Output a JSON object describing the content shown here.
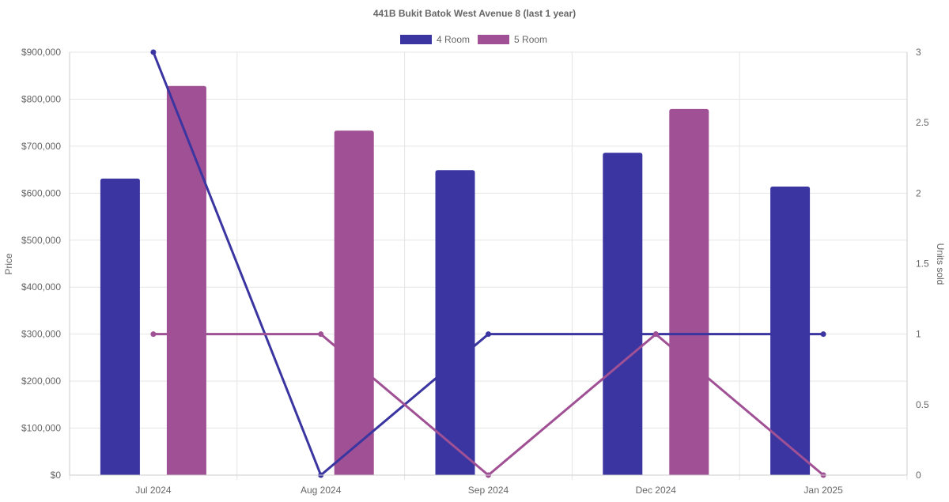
{
  "chart_data": {
    "type": "bar",
    "title": "441B Bukit Batok West Avenue 8 (last 1 year)",
    "categories": [
      "Jul 2024",
      "Aug 2024",
      "Sep 2024",
      "Dec 2024",
      "Jan 2025"
    ],
    "ylabel": "Price",
    "y2label": "Units sold",
    "ylim": [
      0,
      900000
    ],
    "y2lim": [
      0,
      3
    ],
    "yticks": [
      "$0",
      "$100,000",
      "$200,000",
      "$300,000",
      "$400,000",
      "$500,000",
      "$600,000",
      "$700,000",
      "$800,000",
      "$900,000"
    ],
    "y2ticks": [
      "0",
      "0.5",
      "1",
      "1.5",
      "2",
      "2.5",
      "3"
    ],
    "legend_position": "top",
    "grid": true,
    "series": [
      {
        "name": "4 Room",
        "color": "#3a35a0",
        "price": [
          631000,
          null,
          649000,
          686000,
          614000
        ],
        "units": [
          3,
          0,
          1,
          1,
          1
        ]
      },
      {
        "name": "5 Room",
        "color": "#a05094",
        "price": [
          828000,
          733000,
          null,
          779000,
          null
        ],
        "units": [
          1,
          1,
          0,
          1,
          0
        ]
      }
    ]
  }
}
